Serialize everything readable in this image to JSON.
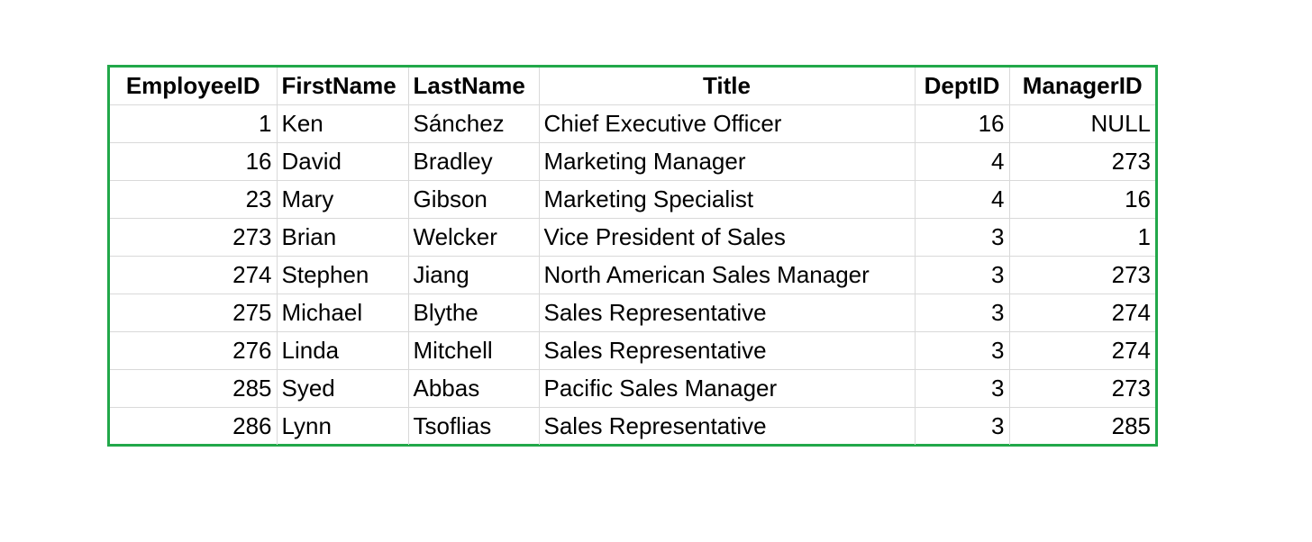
{
  "table": {
    "accent_color": "#22a84a",
    "gridline_color": "#d9d9d9",
    "headers": [
      "EmployeeID",
      "FirstName",
      "LastName",
      "Title",
      "DeptID",
      "ManagerID"
    ],
    "rows": [
      [
        "1",
        "Ken",
        "Sánchez",
        "Chief Executive Officer",
        "16",
        "NULL"
      ],
      [
        "16",
        "David",
        "Bradley",
        "Marketing Manager",
        "4",
        "273"
      ],
      [
        "23",
        "Mary",
        "Gibson",
        "Marketing Specialist",
        "4",
        "16"
      ],
      [
        "273",
        "Brian",
        "Welcker",
        "Vice President of Sales",
        "3",
        "1"
      ],
      [
        "274",
        "Stephen",
        "Jiang",
        "North American Sales Manager",
        "3",
        "273"
      ],
      [
        "275",
        "Michael",
        "Blythe",
        "Sales Representative",
        "3",
        "274"
      ],
      [
        "276",
        "Linda",
        "Mitchell",
        "Sales Representative",
        "3",
        "274"
      ],
      [
        "285",
        "Syed",
        "Abbas",
        "Pacific Sales Manager",
        "3",
        "273"
      ],
      [
        "286",
        "Lynn",
        "Tsoflias",
        "Sales Representative",
        "3",
        "285"
      ]
    ]
  }
}
